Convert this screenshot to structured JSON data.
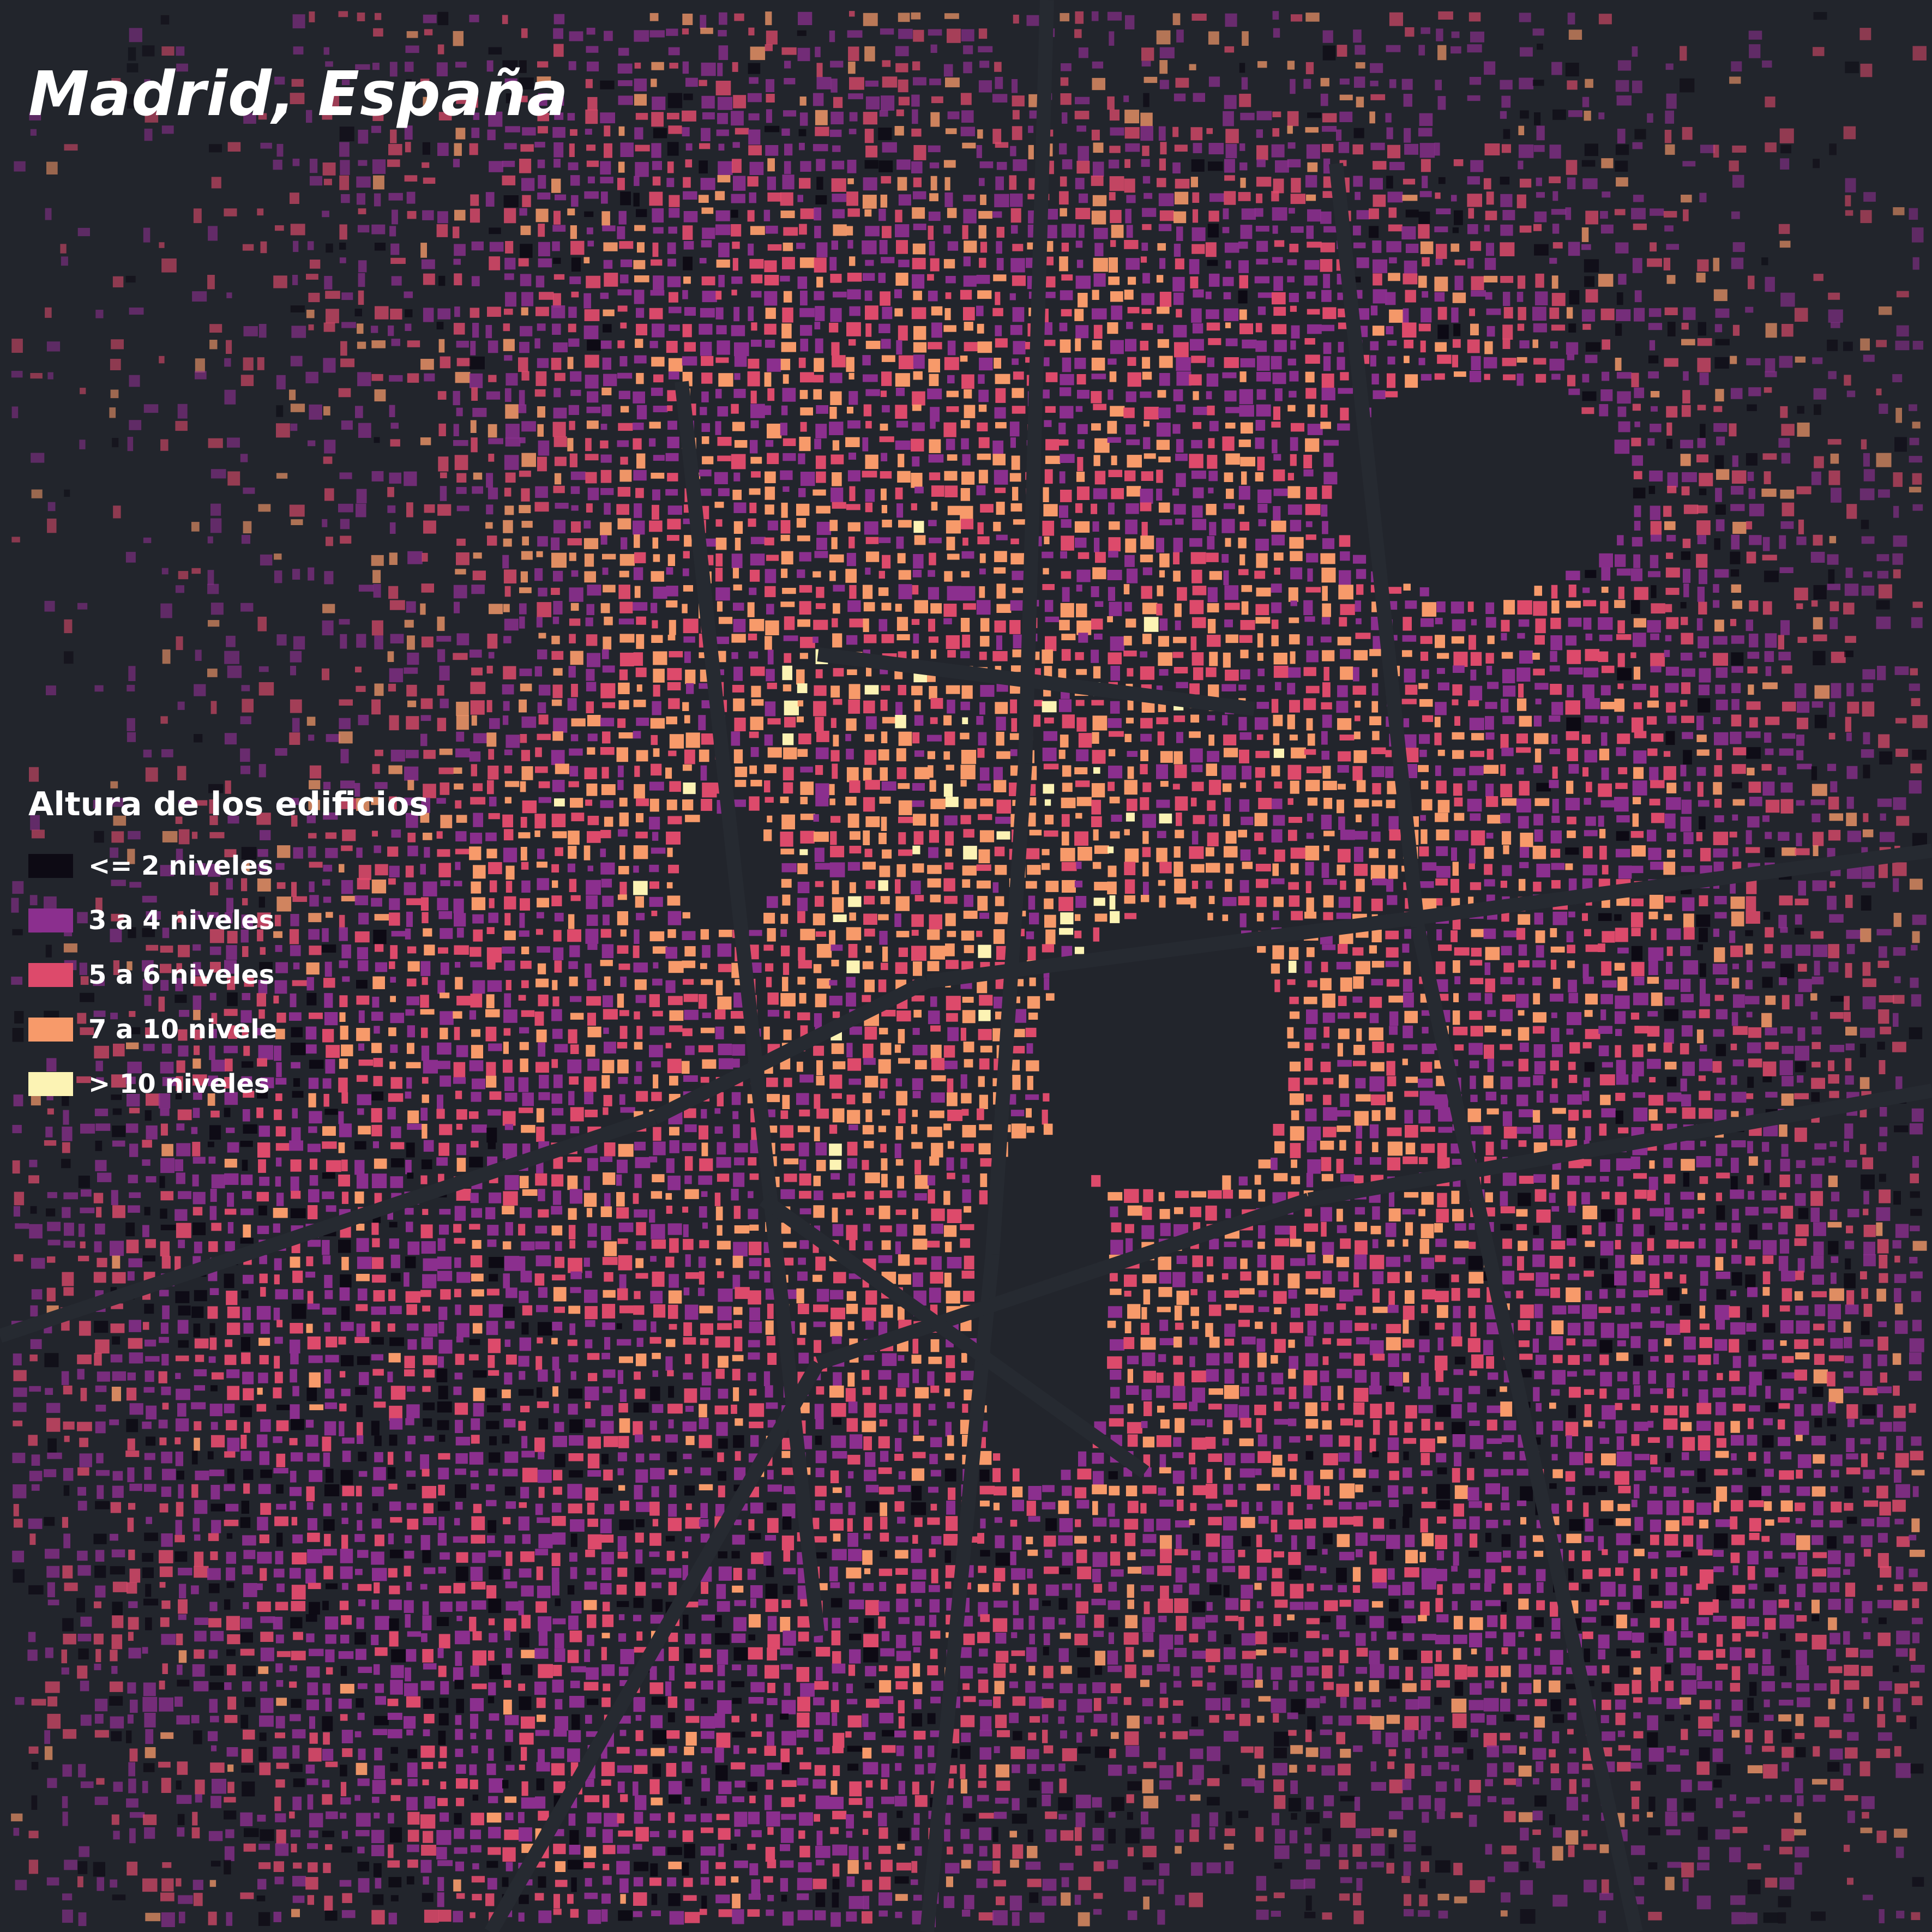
{
  "title": "Madrid, España",
  "legend": {
    "title": "Altura de los edificios",
    "items": [
      {
        "label": "<= 2 niveles",
        "color": "#0d0a14"
      },
      {
        "label": "3 a 4 niveles",
        "color": "#8b2f8e"
      },
      {
        "label": "5 a 6 niveles",
        "color": "#dd4a6b"
      },
      {
        "label": "7 a 10 nivele",
        "color": "#f79a6a"
      },
      {
        "label": "> 10 niveles",
        "color": "#fcf3b4"
      }
    ]
  },
  "colors": {
    "background": "#22252c",
    "road": "#262a31"
  }
}
